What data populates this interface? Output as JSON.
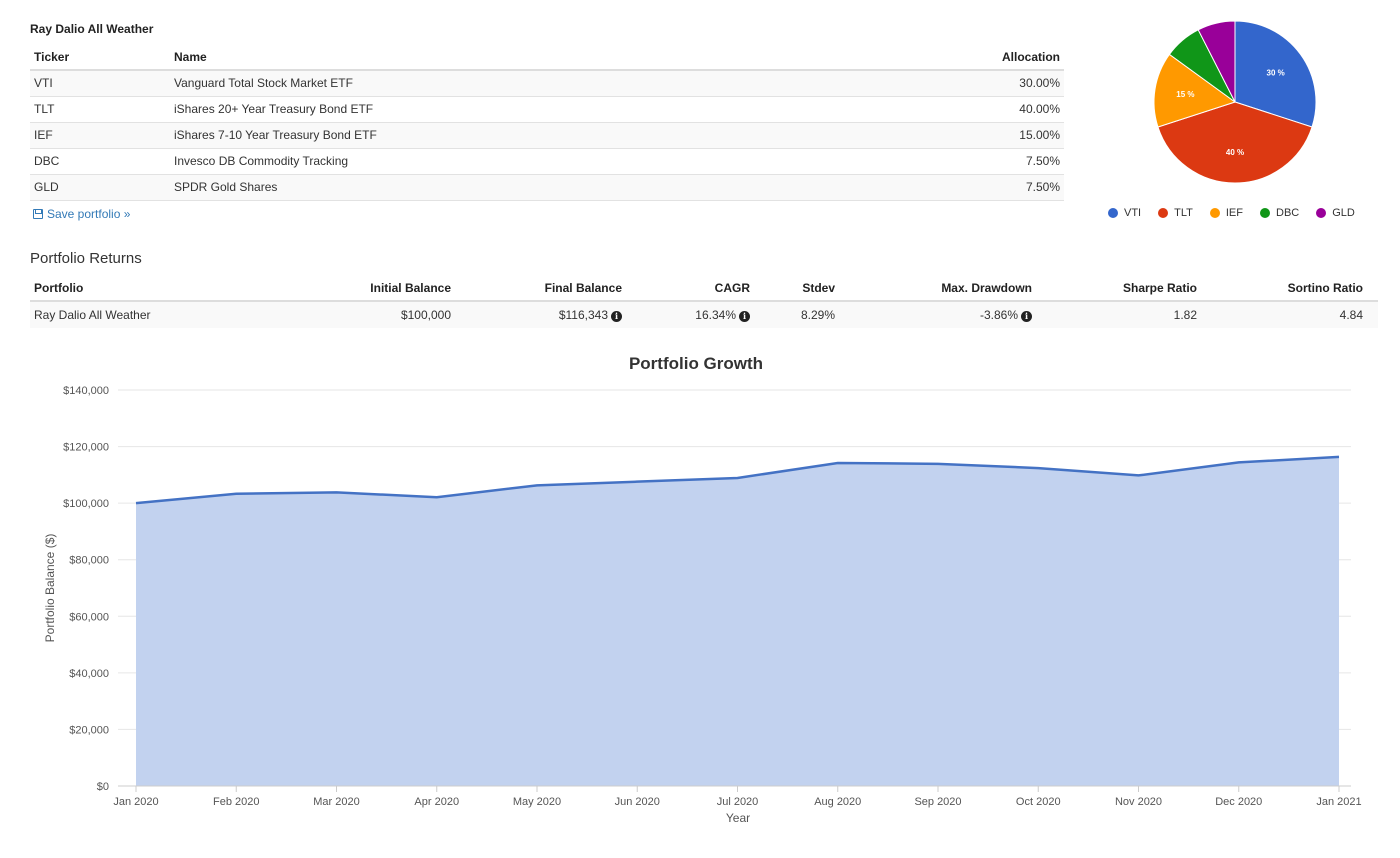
{
  "portfolio": {
    "title": "Ray Dalio All Weather",
    "columns": {
      "ticker": "Ticker",
      "name": "Name",
      "allocation": "Allocation"
    },
    "holdings": [
      {
        "ticker": "VTI",
        "name": "Vanguard Total Stock Market ETF",
        "allocation": "30.00%",
        "color": "#3366cc",
        "pct": 30
      },
      {
        "ticker": "TLT",
        "name": "iShares 20+ Year Treasury Bond ETF",
        "allocation": "40.00%",
        "color": "#dc3912",
        "pct": 40
      },
      {
        "ticker": "IEF",
        "name": "iShares 7-10 Year Treasury Bond ETF",
        "allocation": "15.00%",
        "color": "#ff9900",
        "pct": 15
      },
      {
        "ticker": "DBC",
        "name": "Invesco DB Commodity Tracking",
        "allocation": "7.50%",
        "color": "#109618",
        "pct": 7.5
      },
      {
        "ticker": "GLD",
        "name": "SPDR Gold Shares",
        "allocation": "7.50%",
        "color": "#990099",
        "pct": 7.5
      }
    ],
    "save_label": "Save portfolio »"
  },
  "pie": {
    "slice_labels": [
      "30 %",
      "40 %",
      "15 %",
      "",
      ""
    ]
  },
  "returns": {
    "heading": "Portfolio Returns",
    "columns": [
      "Portfolio",
      "Initial Balance",
      "Final Balance",
      "CAGR",
      "Stdev",
      "Max. Drawdown",
      "Sharpe Ratio",
      "Sortino Ratio"
    ],
    "row": {
      "portfolio": "Ray Dalio All Weather",
      "initial_balance": "$100,000",
      "final_balance": "$116,343",
      "cagr": "16.34%",
      "stdev": "8.29%",
      "max_drawdown": "-3.86%",
      "sharpe": "1.82",
      "sortino": "4.84"
    },
    "info_glyph": "i"
  },
  "chart_data": {
    "type": "area",
    "title": "Portfolio Growth",
    "xlabel": "Year",
    "ylabel": "Portfolio Balance ($)",
    "categories": [
      "Jan 2020",
      "Feb 2020",
      "Mar 2020",
      "Apr 2020",
      "May 2020",
      "Jun 2020",
      "Jul 2020",
      "Aug 2020",
      "Sep 2020",
      "Oct 2020",
      "Nov 2020",
      "Dec 2020",
      "Jan 2021"
    ],
    "y_ticks": [
      "$0",
      "$20,000",
      "$40,000",
      "$60,000",
      "$80,000",
      "$100,000",
      "$120,000",
      "$140,000"
    ],
    "ylim": [
      0,
      140000
    ],
    "series": [
      {
        "values": [
          100000,
          103300,
          103800,
          102100,
          106300,
          107600,
          108900,
          114200,
          113900,
          112400,
          109800,
          114400,
          116343
        ]
      }
    ],
    "line_color": "#4472c4",
    "fill_color": "#c2d2ef",
    "grid": true
  }
}
